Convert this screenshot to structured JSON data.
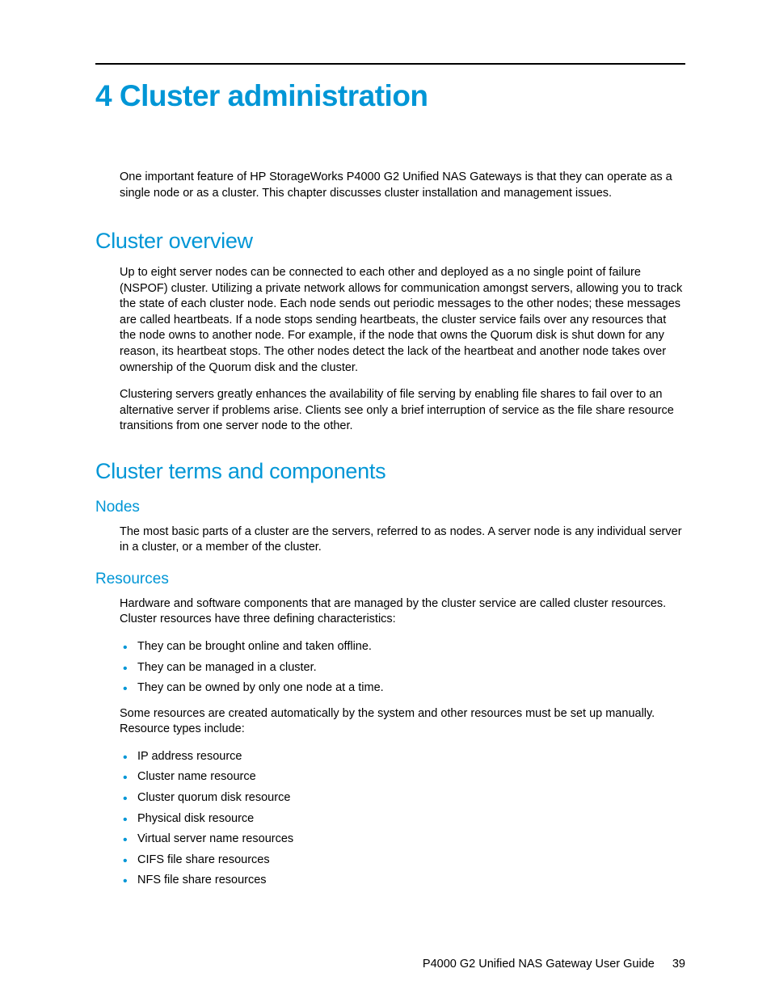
{
  "colors": {
    "accent": "#0096d6",
    "text": "#000000",
    "background": "#ffffff"
  },
  "typography": {
    "chapter_title_size_pt": 28,
    "h2_size_pt": 20,
    "h3_size_pt": 14,
    "body_size_pt": 11,
    "font_family": "Arial, Helvetica, sans-serif"
  },
  "chapter": {
    "title": "4 Cluster administration",
    "intro": "One important feature of HP StorageWorks P4000 G2 Unified NAS Gateways is that they can operate as a single node or as a cluster. This chapter discusses cluster installation and management issues."
  },
  "sections": {
    "overview": {
      "heading": "Cluster overview",
      "p1": "Up to eight server nodes can be connected to each other and deployed as a no single point of failure (NSPOF) cluster. Utilizing a private network allows for communication amongst servers, allowing you to track the state of each cluster node. Each node sends out periodic messages to the other nodes; these messages are called heartbeats. If a node stops sending heartbeats, the cluster service fails over any resources that the node owns to another node. For example, if the node that owns the Quorum disk is shut down for any reason, its heartbeat stops. The other nodes detect the lack of the heartbeat and another node takes over ownership of the Quorum disk and the cluster.",
      "p2": "Clustering servers greatly enhances the availability of file serving by enabling file shares to fail over to an alternative server if problems arise. Clients see only a brief interruption of service as the file share resource transitions from one server node to the other."
    },
    "terms": {
      "heading": "Cluster terms and components",
      "nodes": {
        "heading": "Nodes",
        "p1": "The most basic parts of a cluster are the servers, referred to as nodes. A server node is any individual server in a cluster, or a member of the cluster."
      },
      "resources": {
        "heading": "Resources",
        "p1": "Hardware and software components that are managed by the cluster service are called cluster resources. Cluster resources have three defining characteristics:",
        "bullets1": [
          "They can be brought online and taken offline.",
          "They can be managed in a cluster.",
          "They can be owned by only one node at a time."
        ],
        "p2": "Some resources are created automatically by the system and other resources must be set up manually. Resource types include:",
        "bullets2": [
          "IP address resource",
          "Cluster name resource",
          "Cluster quorum disk resource",
          "Physical disk resource",
          "Virtual server name resources",
          "CIFS file share resources",
          "NFS file share resources"
        ]
      }
    }
  },
  "footer": {
    "doc_title": "P4000 G2 Unified NAS Gateway User Guide",
    "page_number": "39"
  }
}
